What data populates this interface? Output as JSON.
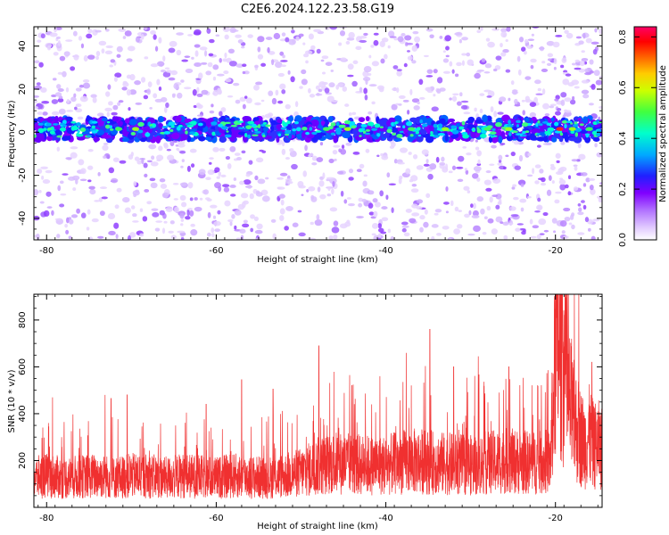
{
  "title": "C2E6.2024.122.23.58.G19",
  "chart_data": [
    {
      "type": "heatmap",
      "xlabel": "Height of straight line (km)",
      "ylabel": "Frequency (Hz)",
      "xlim": [
        -81.5,
        -14.5
      ],
      "ylim": [
        -50,
        49
      ],
      "xticks": [
        -80,
        -60,
        -40,
        -20
      ],
      "yticks": [
        -40,
        -20,
        0,
        20,
        40
      ],
      "colorbar": {
        "label": "Normalized spectral amplitude",
        "range": [
          0,
          0.84
        ],
        "ticks": [
          0.0,
          0.2,
          0.4,
          0.6,
          0.8
        ],
        "colormap": [
          "#ffffff",
          "#d9b8ff",
          "#b070ff",
          "#8000ff",
          "#2020ff",
          "#00aaff",
          "#00ffcc",
          "#40ff40",
          "#ccff00",
          "#ffcc00",
          "#ff6000",
          "#ff0000",
          "#ff0066"
        ]
      },
      "band": {
        "center_hz": 1.5,
        "halfwidth_hz": 5,
        "hotspots_km": [
          -71.5,
          -69.5,
          -47,
          -44.5,
          -37,
          -33,
          -28,
          -25.5,
          -19.5,
          -18,
          -16
        ]
      },
      "grid": false
    },
    {
      "type": "line",
      "xlabel": "Height of straight line (km)",
      "ylabel": "SNR (10 * v/v)",
      "xlim": [
        -81.5,
        -14.5
      ],
      "ylim": [
        0,
        910
      ],
      "xticks": [
        -80,
        -60,
        -40,
        -20
      ],
      "yticks": [
        200,
        400,
        600,
        800
      ],
      "color": "#f03030",
      "series": [
        {
          "x": [
            -81.5,
            -80,
            -78,
            -76,
            -74,
            -72,
            -70,
            -68,
            -66,
            -64,
            -62,
            -60,
            -58,
            -56,
            -54,
            -52,
            -50,
            -48,
            -46,
            -44,
            -42,
            -40,
            -38,
            -36,
            -34,
            -32,
            -30,
            -28,
            -26,
            -24,
            -22,
            -20.6,
            -20,
            -19.5,
            -19,
            -18.5,
            -18,
            -17.5,
            -17,
            -16.5,
            -16,
            -15.5,
            -15,
            -14.5
          ],
          "values": [
            140,
            150,
            140,
            145,
            150,
            140,
            150,
            150,
            140,
            150,
            145,
            140,
            150,
            145,
            140,
            150,
            165,
            195,
            210,
            205,
            200,
            200,
            215,
            220,
            210,
            205,
            200,
            210,
            220,
            215,
            210,
            220,
            700,
            780,
            640,
            520,
            420,
            380,
            330,
            300,
            340,
            290,
            300,
            280
          ],
          "peaks": [
            {
              "x": -19.9,
              "y": 910
            },
            {
              "x": -19.2,
              "y": 880
            },
            {
              "x": -19.0,
              "y": 820
            },
            {
              "x": -18.1,
              "y": 720
            },
            {
              "x": -15.7,
              "y": 620
            },
            {
              "x": -34.8,
              "y": 760
            },
            {
              "x": -47.9,
              "y": 690
            },
            {
              "x": -37.6,
              "y": 660
            },
            {
              "x": -29.1,
              "y": 645
            },
            {
              "x": -32.0,
              "y": 600
            },
            {
              "x": -25.5,
              "y": 600
            },
            {
              "x": -57.0,
              "y": 545
            },
            {
              "x": -53.3,
              "y": 505
            },
            {
              "x": -40.7,
              "y": 560
            },
            {
              "x": -44.0,
              "y": 520
            },
            {
              "x": -79.3,
              "y": 470
            },
            {
              "x": -61.2,
              "y": 440
            },
            {
              "x": -70.5,
              "y": 480
            },
            {
              "x": -72.4,
              "y": 465
            },
            {
              "x": -73.1,
              "y": 480
            }
          ]
        }
      ],
      "grid": false
    }
  ]
}
